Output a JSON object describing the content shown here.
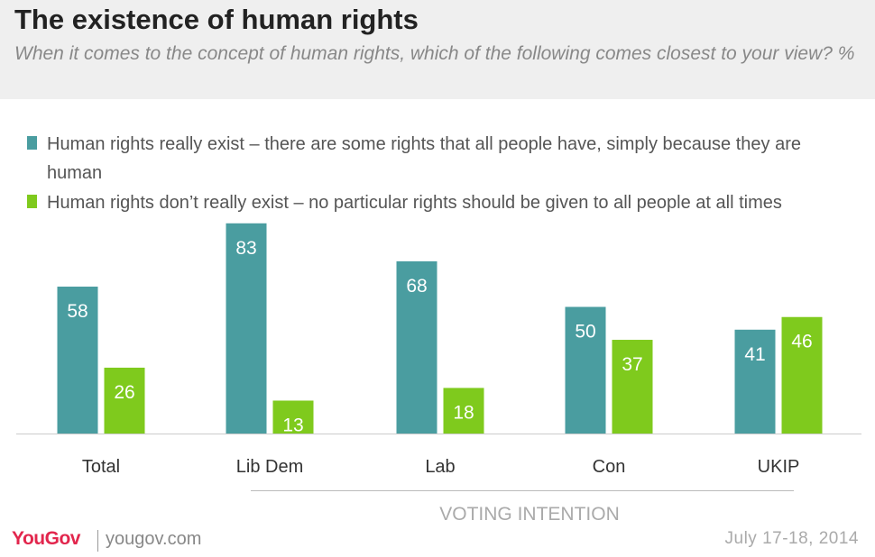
{
  "header": {
    "title": "The existence of human rights",
    "subtitle": "When it comes to the concept of human rights, which of the following comes closest to your view? %"
  },
  "chart_data": {
    "type": "bar",
    "title": "The existence of human rights",
    "categories": [
      "Total",
      "Lib Dem",
      "Lab",
      "Con",
      "UKIP"
    ],
    "series": [
      {
        "name": "Human rights really exist – there are some rights that all people have, simply because they are human",
        "color": "#4a9da0",
        "values": [
          58,
          83,
          68,
          50,
          41
        ]
      },
      {
        "name": "Human rights don’t really exist – no particular rights should be given to all people at all times",
        "color": "#7fca1d",
        "values": [
          26,
          13,
          18,
          37,
          46
        ]
      }
    ],
    "group_label": "VOTING INTENTION",
    "group_categories": [
      "Lib Dem",
      "Lab",
      "Con",
      "UKIP"
    ],
    "ylim": [
      0,
      100
    ],
    "grid": false,
    "legend_position": "top-left",
    "xlabel": "",
    "ylabel": ""
  },
  "footer": {
    "brand": "YouGov",
    "url": "yougov.com",
    "date": "July 17-18, 2014"
  }
}
